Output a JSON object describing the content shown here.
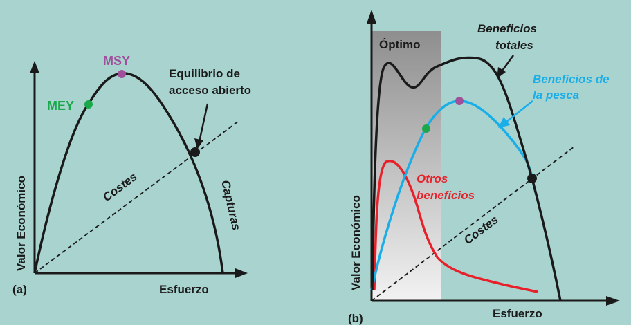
{
  "panel_a": {
    "tag": "(a)",
    "y_axis_label": "Valor Económico",
    "x_axis_label": "Esfuerzo",
    "msy_label": "MSY",
    "mey_label": "MEY",
    "equilibrium_label_line1": "Equilibrio de",
    "equilibrium_label_line2": "acceso abierto",
    "costs_label": "Costes",
    "catch_label": "Capturas"
  },
  "panel_b": {
    "tag": "(b)",
    "y_axis_label": "Valor Económico",
    "x_axis_label": "Esfuerzo",
    "optimum_label": "Óptimo",
    "total_benefits_line1": "Beneficios",
    "total_benefits_line2": "totales",
    "fishing_benefits_line1": "Beneficios de",
    "fishing_benefits_line2": "la pesca",
    "other_benefits_line1": "Otros",
    "other_benefits_line2": "beneficios",
    "costs_label": "Costes"
  },
  "colors": {
    "background": "#a9d3cf",
    "msy": "#a0509a",
    "mey": "#1aa84a",
    "fishing_curve": "#1aaee8",
    "other_curve": "#e8202a",
    "axis": "#1a1a1a"
  }
}
